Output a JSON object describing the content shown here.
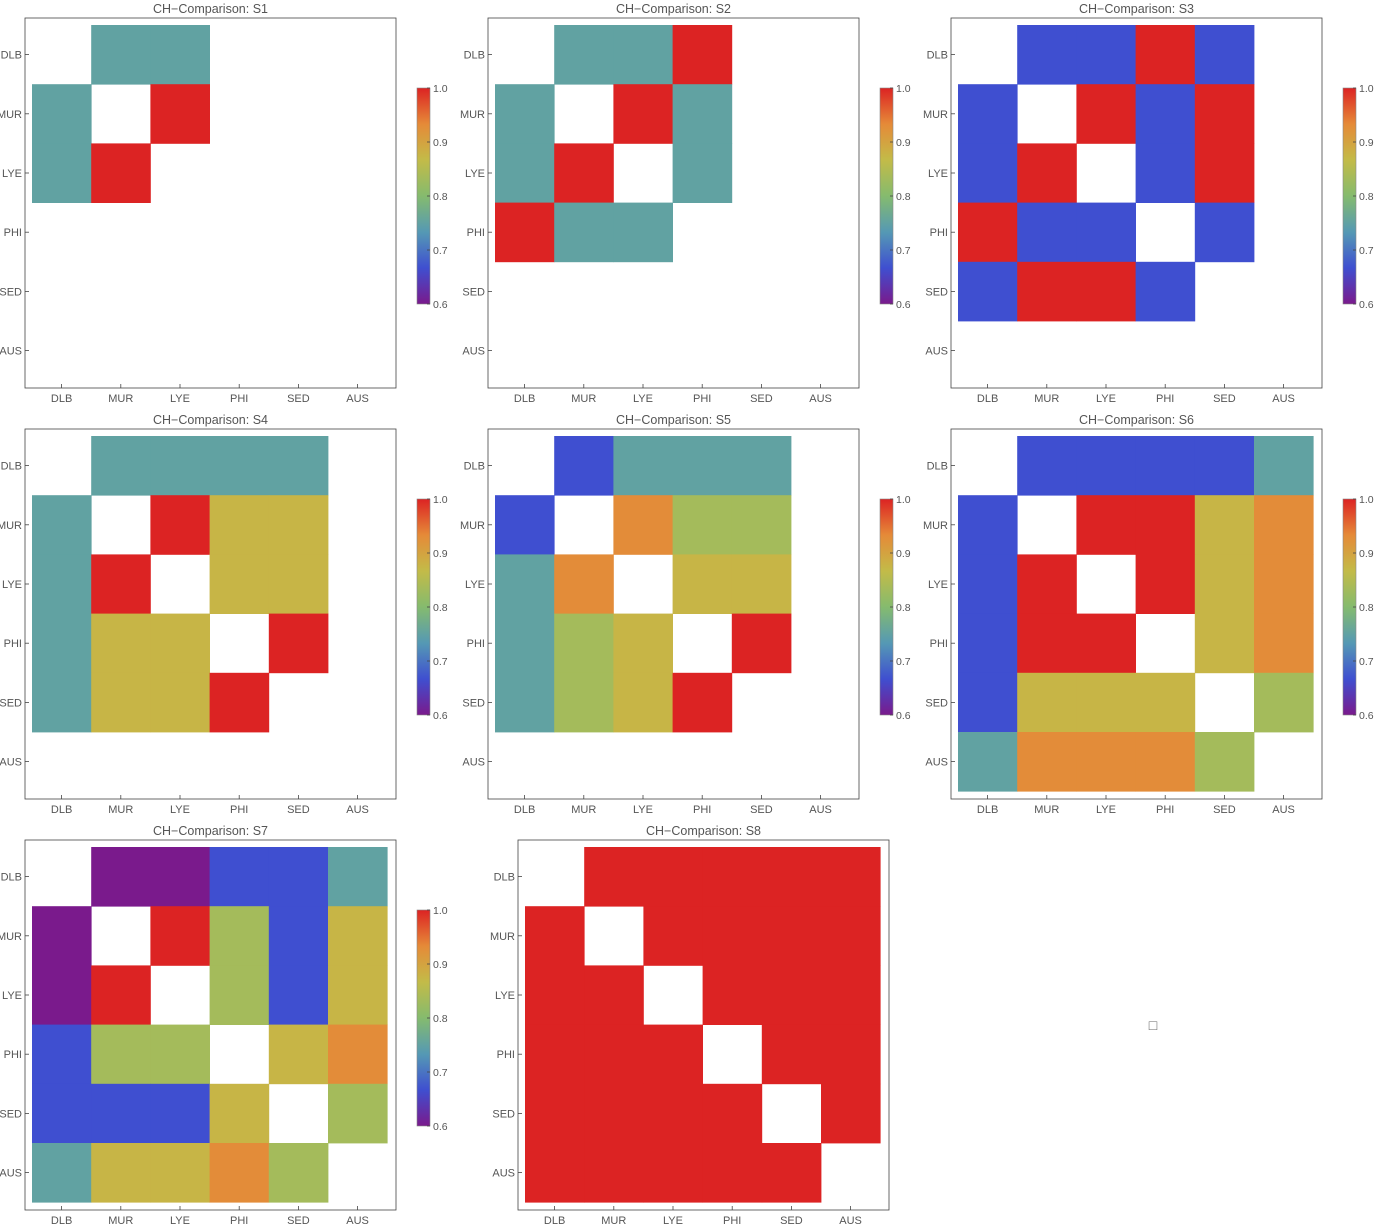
{
  "labels": [
    "DLB",
    "MUR",
    "LYE",
    "PHI",
    "SED",
    "AUS"
  ],
  "colorbar": {
    "ticks": [
      "1.0",
      "0.9",
      "0.8",
      "0.7",
      "0.6"
    ],
    "min": 0.6,
    "max": 1.0,
    "stops": [
      "#7a1a8c",
      "#3f4fd0",
      "#5599b4",
      "#85bb6e",
      "#c3bb48",
      "#e58a38",
      "#dc2323"
    ]
  },
  "empty_panel_glyph": "□",
  "chart_data": [
    {
      "type": "heatmap",
      "title": "CH−Comparison: S1",
      "rows": [
        "DLB",
        "MUR",
        "LYE",
        "PHI",
        "SED",
        "AUS"
      ],
      "columns": [
        "DLB",
        "MUR",
        "LYE",
        "PHI",
        "SED",
        "AUS"
      ],
      "values": [
        [
          null,
          0.75,
          0.75,
          null,
          null,
          null
        ],
        [
          0.75,
          null,
          1.0,
          null,
          null,
          null
        ],
        [
          0.75,
          1.0,
          null,
          null,
          null,
          null
        ],
        [
          null,
          null,
          null,
          null,
          null,
          null
        ],
        [
          null,
          null,
          null,
          null,
          null,
          null
        ],
        [
          null,
          null,
          null,
          null,
          null,
          null
        ]
      ],
      "colorbar": true
    },
    {
      "type": "heatmap",
      "title": "CH−Comparison: S2",
      "rows": [
        "DLB",
        "MUR",
        "LYE",
        "PHI",
        "SED",
        "AUS"
      ],
      "columns": [
        "DLB",
        "MUR",
        "LYE",
        "PHI",
        "SED",
        "AUS"
      ],
      "values": [
        [
          null,
          0.75,
          0.75,
          1.0,
          null,
          null
        ],
        [
          0.75,
          null,
          1.0,
          0.75,
          null,
          null
        ],
        [
          0.75,
          1.0,
          null,
          0.75,
          null,
          null
        ],
        [
          1.0,
          0.75,
          0.75,
          null,
          null,
          null
        ],
        [
          null,
          null,
          null,
          null,
          null,
          null
        ],
        [
          null,
          null,
          null,
          null,
          null,
          null
        ]
      ],
      "colorbar": true
    },
    {
      "type": "heatmap",
      "title": "CH−Comparison: S3",
      "rows": [
        "DLB",
        "MUR",
        "LYE",
        "PHI",
        "SED",
        "AUS"
      ],
      "columns": [
        "DLB",
        "MUR",
        "LYE",
        "PHI",
        "SED",
        "AUS"
      ],
      "values": [
        [
          null,
          0.667,
          0.667,
          1.0,
          0.667,
          null
        ],
        [
          0.667,
          null,
          1.0,
          0.667,
          1.0,
          null
        ],
        [
          0.667,
          1.0,
          null,
          0.667,
          1.0,
          null
        ],
        [
          1.0,
          0.667,
          0.667,
          null,
          0.667,
          null
        ],
        [
          0.667,
          1.0,
          1.0,
          0.667,
          null,
          null
        ],
        [
          null,
          null,
          null,
          null,
          null,
          null
        ]
      ],
      "colorbar": true
    },
    {
      "type": "heatmap",
      "title": "CH−Comparison: S4",
      "rows": [
        "DLB",
        "MUR",
        "LYE",
        "PHI",
        "SED",
        "AUS"
      ],
      "columns": [
        "DLB",
        "MUR",
        "LYE",
        "PHI",
        "SED",
        "AUS"
      ],
      "values": [
        [
          null,
          0.75,
          0.75,
          0.75,
          0.75,
          null
        ],
        [
          0.75,
          null,
          1.0,
          0.875,
          0.875,
          null
        ],
        [
          0.75,
          1.0,
          null,
          0.875,
          0.875,
          null
        ],
        [
          0.75,
          0.875,
          0.875,
          null,
          1.0,
          null
        ],
        [
          0.75,
          0.875,
          0.875,
          1.0,
          null,
          null
        ],
        [
          null,
          null,
          null,
          null,
          null,
          null
        ]
      ],
      "colorbar": true
    },
    {
      "type": "heatmap",
      "title": "CH−Comparison: S5",
      "rows": [
        "DLB",
        "MUR",
        "LYE",
        "PHI",
        "SED",
        "AUS"
      ],
      "columns": [
        "DLB",
        "MUR",
        "LYE",
        "PHI",
        "SED",
        "AUS"
      ],
      "values": [
        [
          null,
          0.667,
          0.75,
          0.75,
          0.75,
          null
        ],
        [
          0.667,
          null,
          0.93,
          0.833,
          0.833,
          null
        ],
        [
          0.75,
          0.93,
          null,
          0.875,
          0.875,
          null
        ],
        [
          0.75,
          0.833,
          0.875,
          null,
          1.0,
          null
        ],
        [
          0.75,
          0.833,
          0.875,
          1.0,
          null,
          null
        ],
        [
          null,
          null,
          null,
          null,
          null,
          null
        ]
      ],
      "colorbar": true
    },
    {
      "type": "heatmap",
      "title": "CH−Comparison: S6",
      "rows": [
        "DLB",
        "MUR",
        "LYE",
        "PHI",
        "SED",
        "AUS"
      ],
      "columns": [
        "DLB",
        "MUR",
        "LYE",
        "PHI",
        "SED",
        "AUS"
      ],
      "values": [
        [
          null,
          0.667,
          0.667,
          0.667,
          0.667,
          0.75
        ],
        [
          0.667,
          null,
          1.0,
          1.0,
          0.875,
          0.93
        ],
        [
          0.667,
          1.0,
          null,
          1.0,
          0.875,
          0.93
        ],
        [
          0.667,
          1.0,
          1.0,
          null,
          0.875,
          0.93
        ],
        [
          0.667,
          0.875,
          0.875,
          0.875,
          null,
          0.833
        ],
        [
          0.75,
          0.93,
          0.93,
          0.93,
          0.833,
          null
        ]
      ],
      "colorbar": true
    },
    {
      "type": "heatmap",
      "title": "CH−Comparison: S7",
      "rows": [
        "DLB",
        "MUR",
        "LYE",
        "PHI",
        "SED",
        "AUS"
      ],
      "columns": [
        "DLB",
        "MUR",
        "LYE",
        "PHI",
        "SED",
        "AUS"
      ],
      "values": [
        [
          null,
          0.6,
          0.6,
          0.667,
          0.667,
          0.75
        ],
        [
          0.6,
          null,
          1.0,
          0.833,
          0.667,
          0.875
        ],
        [
          0.6,
          1.0,
          null,
          0.833,
          0.667,
          0.875
        ],
        [
          0.667,
          0.833,
          0.833,
          null,
          0.875,
          0.93
        ],
        [
          0.667,
          0.667,
          0.667,
          0.875,
          null,
          0.833
        ],
        [
          0.75,
          0.875,
          0.875,
          0.93,
          0.833,
          null
        ]
      ],
      "colorbar": true
    },
    {
      "type": "heatmap",
      "title": "CH−Comparison: S8",
      "rows": [
        "DLB",
        "MUR",
        "LYE",
        "PHI",
        "SED",
        "AUS"
      ],
      "columns": [
        "DLB",
        "MUR",
        "LYE",
        "PHI",
        "SED",
        "AUS"
      ],
      "values": [
        [
          null,
          1.0,
          1.0,
          1.0,
          1.0,
          1.0
        ],
        [
          1.0,
          null,
          1.0,
          1.0,
          1.0,
          1.0
        ],
        [
          1.0,
          1.0,
          null,
          1.0,
          1.0,
          1.0
        ],
        [
          1.0,
          1.0,
          1.0,
          null,
          1.0,
          1.0
        ],
        [
          1.0,
          1.0,
          1.0,
          1.0,
          null,
          1.0
        ],
        [
          1.0,
          1.0,
          1.0,
          1.0,
          1.0,
          null
        ]
      ],
      "colorbar": false
    }
  ]
}
